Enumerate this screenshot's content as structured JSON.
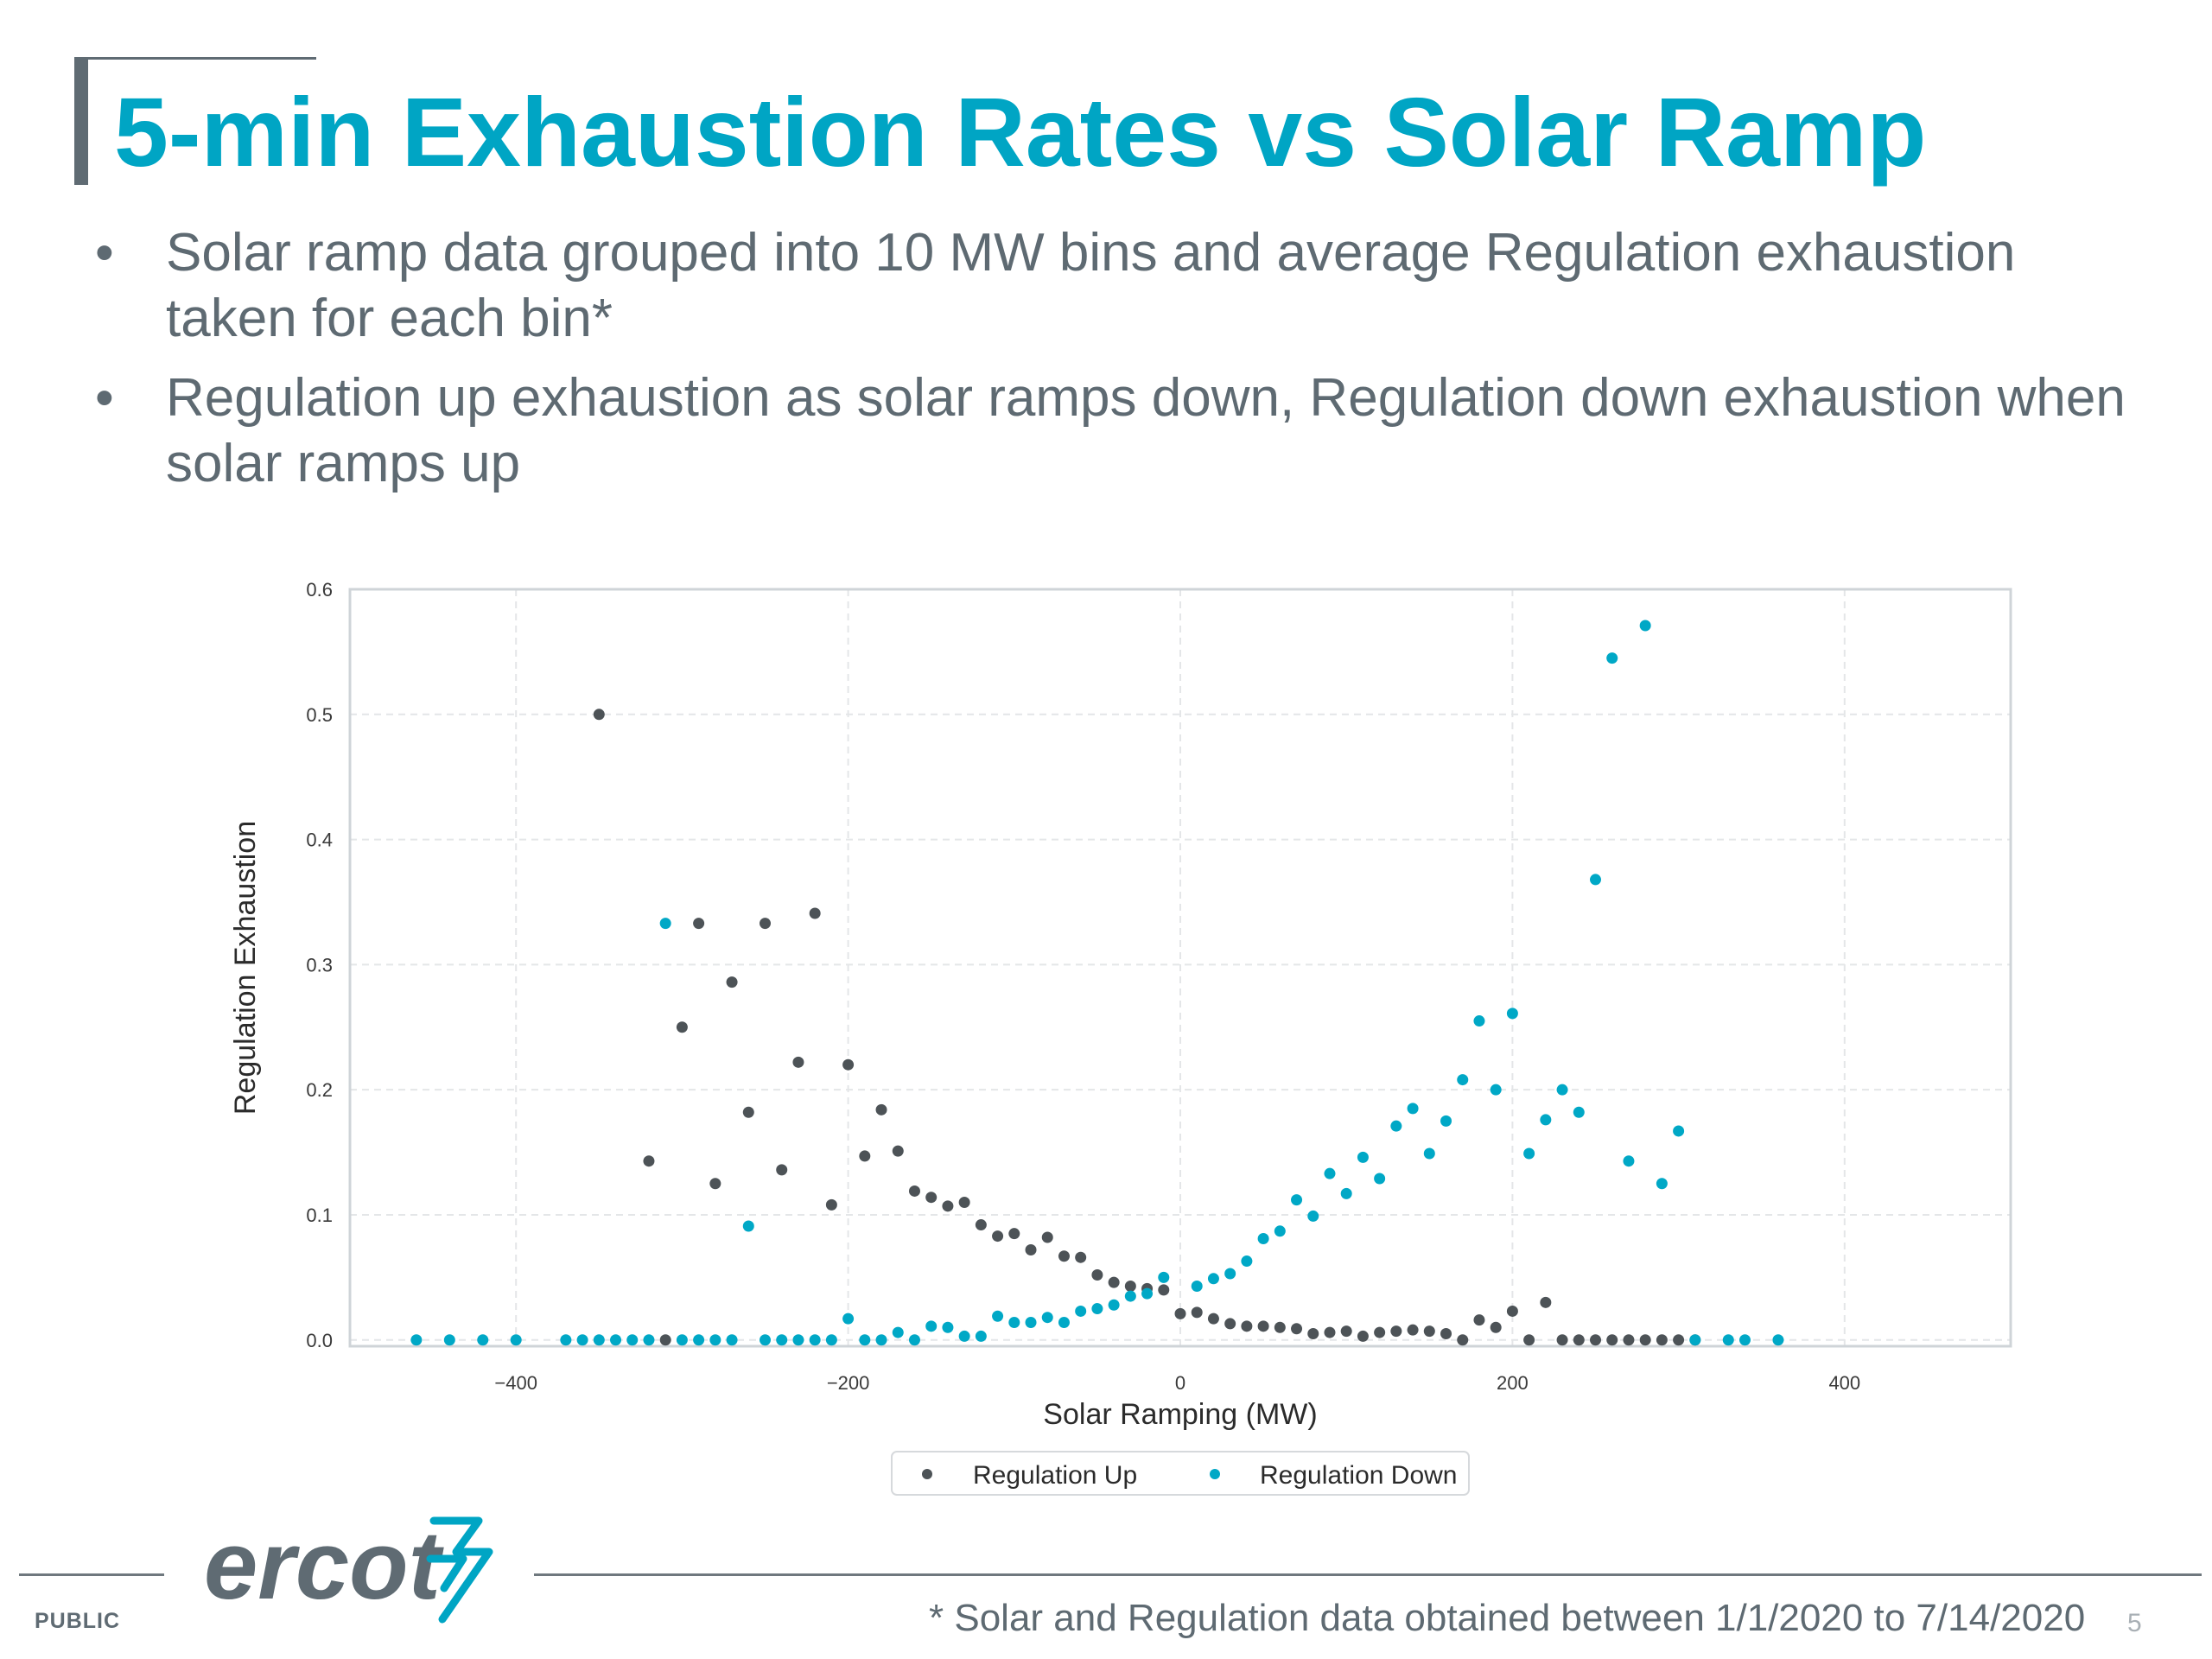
{
  "slide": {
    "title": "5-min Exhaustion Rates vs Solar Ramp",
    "bullets": [
      "Solar ramp data grouped into 10 MW bins and average Regulation exhaustion taken for each bin*",
      "Regulation up exhaustion as solar ramps down, Regulation down exhaustion when solar ramps up"
    ],
    "bullet_symbol": "•",
    "footer": {
      "classification": "PUBLIC",
      "logo_text": "ercot",
      "footnote": "* Solar and Regulation data obtained between 1/1/2020 to 7/14/2020",
      "page_number": "5"
    }
  },
  "colors": {
    "title": "#00a5c4",
    "regulation_up": "#4d5357",
    "regulation_down": "#00a8c6",
    "grid": "#e6e6e6",
    "text": "#5e6a72"
  },
  "chart_data": {
    "type": "scatter",
    "title": "",
    "xlabel": "Solar Ramping (MW)",
    "ylabel": "Regulation Exhaustion",
    "xlim": [
      -500,
      500
    ],
    "ylim": [
      -0.005,
      0.6
    ],
    "xticks": [
      -400,
      -200,
      0,
      200,
      400
    ],
    "xtick_labels": [
      "−400",
      "−200",
      "0",
      "200",
      "400"
    ],
    "yticks": [
      0.0,
      0.1,
      0.2,
      0.3,
      0.4,
      0.5,
      0.6
    ],
    "ytick_labels": [
      "0.0",
      "0.1",
      "0.2",
      "0.3",
      "0.4",
      "0.5",
      "0.6"
    ],
    "grid": true,
    "grid_style": "dashed",
    "legend_position": "bottom-center",
    "series": [
      {
        "name": "Regulation Up",
        "color": "#4d5357",
        "points": [
          [
            -350,
            0.5
          ],
          [
            -320,
            0.143
          ],
          [
            -310,
            0.0
          ],
          [
            -300,
            0.25
          ],
          [
            -290,
            0.333
          ],
          [
            -280,
            0.125
          ],
          [
            -270,
            0.286
          ],
          [
            -260,
            0.182
          ],
          [
            -250,
            0.333
          ],
          [
            -240,
            0.136
          ],
          [
            -230,
            0.222
          ],
          [
            -220,
            0.341
          ],
          [
            -210,
            0.108
          ],
          [
            -200,
            0.22
          ],
          [
            -190,
            0.147
          ],
          [
            -180,
            0.184
          ],
          [
            -170,
            0.151
          ],
          [
            -160,
            0.119
          ],
          [
            -150,
            0.114
          ],
          [
            -140,
            0.107
          ],
          [
            -130,
            0.11
          ],
          [
            -120,
            0.092
          ],
          [
            -110,
            0.083
          ],
          [
            -100,
            0.085
          ],
          [
            -90,
            0.072
          ],
          [
            -80,
            0.082
          ],
          [
            -70,
            0.067
          ],
          [
            -60,
            0.066
          ],
          [
            -50,
            0.052
          ],
          [
            -40,
            0.046
          ],
          [
            -30,
            0.043
          ],
          [
            -20,
            0.041
          ],
          [
            -10,
            0.04
          ],
          [
            0,
            0.021
          ],
          [
            10,
            0.022
          ],
          [
            20,
            0.017
          ],
          [
            30,
            0.013
          ],
          [
            40,
            0.011
          ],
          [
            50,
            0.011
          ],
          [
            60,
            0.01
          ],
          [
            70,
            0.009
          ],
          [
            80,
            0.005
          ],
          [
            90,
            0.006
          ],
          [
            100,
            0.007
          ],
          [
            110,
            0.003
          ],
          [
            120,
            0.006
          ],
          [
            130,
            0.007
          ],
          [
            140,
            0.008
          ],
          [
            150,
            0.007
          ],
          [
            160,
            0.005
          ],
          [
            170,
            0.0
          ],
          [
            180,
            0.016
          ],
          [
            190,
            0.01
          ],
          [
            200,
            0.023
          ],
          [
            210,
            0.0
          ],
          [
            220,
            0.03
          ],
          [
            230,
            0.0
          ],
          [
            240,
            0.0
          ],
          [
            250,
            0.0
          ],
          [
            260,
            0.0
          ],
          [
            270,
            0.0
          ],
          [
            280,
            0.0
          ],
          [
            290,
            0.0
          ],
          [
            300,
            0.0
          ],
          [
            310,
            0.0
          ]
        ]
      },
      {
        "name": "Regulation Down",
        "color": "#00a8c6",
        "points": [
          [
            -460,
            0.0
          ],
          [
            -440,
            0.0
          ],
          [
            -420,
            0.0
          ],
          [
            -400,
            0.0
          ],
          [
            -370,
            0.0
          ],
          [
            -360,
            0.0
          ],
          [
            -350,
            0.0
          ],
          [
            -340,
            0.0
          ],
          [
            -330,
            0.0
          ],
          [
            -320,
            0.0
          ],
          [
            -310,
            0.333
          ],
          [
            -300,
            0.0
          ],
          [
            -290,
            0.0
          ],
          [
            -280,
            0.0
          ],
          [
            -270,
            0.0
          ],
          [
            -260,
            0.091
          ],
          [
            -250,
            0.0
          ],
          [
            -240,
            0.0
          ],
          [
            -230,
            0.0
          ],
          [
            -220,
            0.0
          ],
          [
            -210,
            0.0
          ],
          [
            -200,
            0.017
          ],
          [
            -190,
            0.0
          ],
          [
            -180,
            0.0
          ],
          [
            -170,
            0.006
          ],
          [
            -160,
            0.0
          ],
          [
            -150,
            0.011
          ],
          [
            -140,
            0.01
          ],
          [
            -130,
            0.003
          ],
          [
            -120,
            0.003
          ],
          [
            -110,
            0.019
          ],
          [
            -100,
            0.014
          ],
          [
            -90,
            0.014
          ],
          [
            -80,
            0.018
          ],
          [
            -70,
            0.014
          ],
          [
            -60,
            0.023
          ],
          [
            -50,
            0.025
          ],
          [
            -40,
            0.028
          ],
          [
            -30,
            0.035
          ],
          [
            -20,
            0.037
          ],
          [
            -10,
            0.05
          ],
          [
            10,
            0.043
          ],
          [
            20,
            0.049
          ],
          [
            30,
            0.053
          ],
          [
            40,
            0.063
          ],
          [
            50,
            0.081
          ],
          [
            60,
            0.087
          ],
          [
            70,
            0.112
          ],
          [
            80,
            0.099
          ],
          [
            90,
            0.133
          ],
          [
            100,
            0.117
          ],
          [
            110,
            0.146
          ],
          [
            120,
            0.129
          ],
          [
            130,
            0.171
          ],
          [
            140,
            0.185
          ],
          [
            150,
            0.149
          ],
          [
            160,
            0.175
          ],
          [
            170,
            0.208
          ],
          [
            180,
            0.255
          ],
          [
            190,
            0.2
          ],
          [
            200,
            0.261
          ],
          [
            210,
            0.149
          ],
          [
            220,
            0.176
          ],
          [
            230,
            0.2
          ],
          [
            240,
            0.182
          ],
          [
            250,
            0.368
          ],
          [
            260,
            0.545
          ],
          [
            270,
            0.143
          ],
          [
            280,
            0.571
          ],
          [
            290,
            0.125
          ],
          [
            300,
            0.167
          ],
          [
            310,
            0.0
          ],
          [
            330,
            0.0
          ],
          [
            340,
            0.0
          ],
          [
            360,
            0.0
          ]
        ]
      }
    ]
  }
}
